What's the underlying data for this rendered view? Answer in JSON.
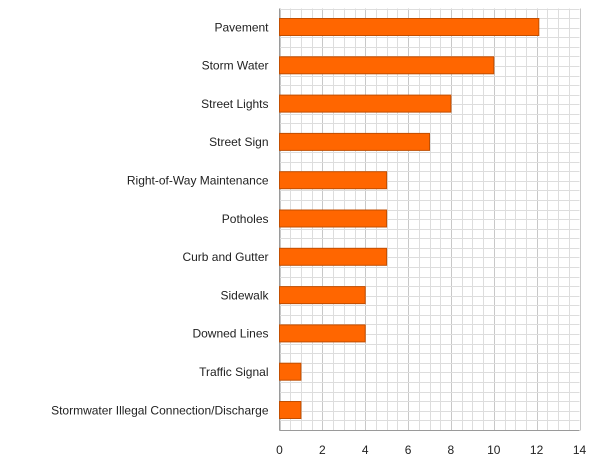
{
  "chart_data": {
    "type": "bar",
    "orientation": "horizontal",
    "categories": [
      "Pavement",
      "Storm Water",
      "Street Lights",
      "Street Sign",
      "Right-of-Way Maintenance",
      "Potholes",
      "Curb and Gutter",
      "Sidewalk",
      "Downed Lines",
      "Traffic Signal",
      "Stormwater Illegal Connection/Discharge"
    ],
    "values": [
      12.1,
      10.0,
      8.0,
      7.0,
      5.0,
      5.0,
      5.0,
      4.0,
      4.0,
      1.0,
      1.0
    ],
    "xlim": [
      0,
      14
    ],
    "x_ticks": [
      "0",
      "2",
      "4",
      "6",
      "8",
      "10",
      "12",
      "14"
    ],
    "grid": true,
    "bar_color": "#ff6600",
    "bar_edge_color": "#c24e00",
    "grid_color": "#dddddd"
  }
}
